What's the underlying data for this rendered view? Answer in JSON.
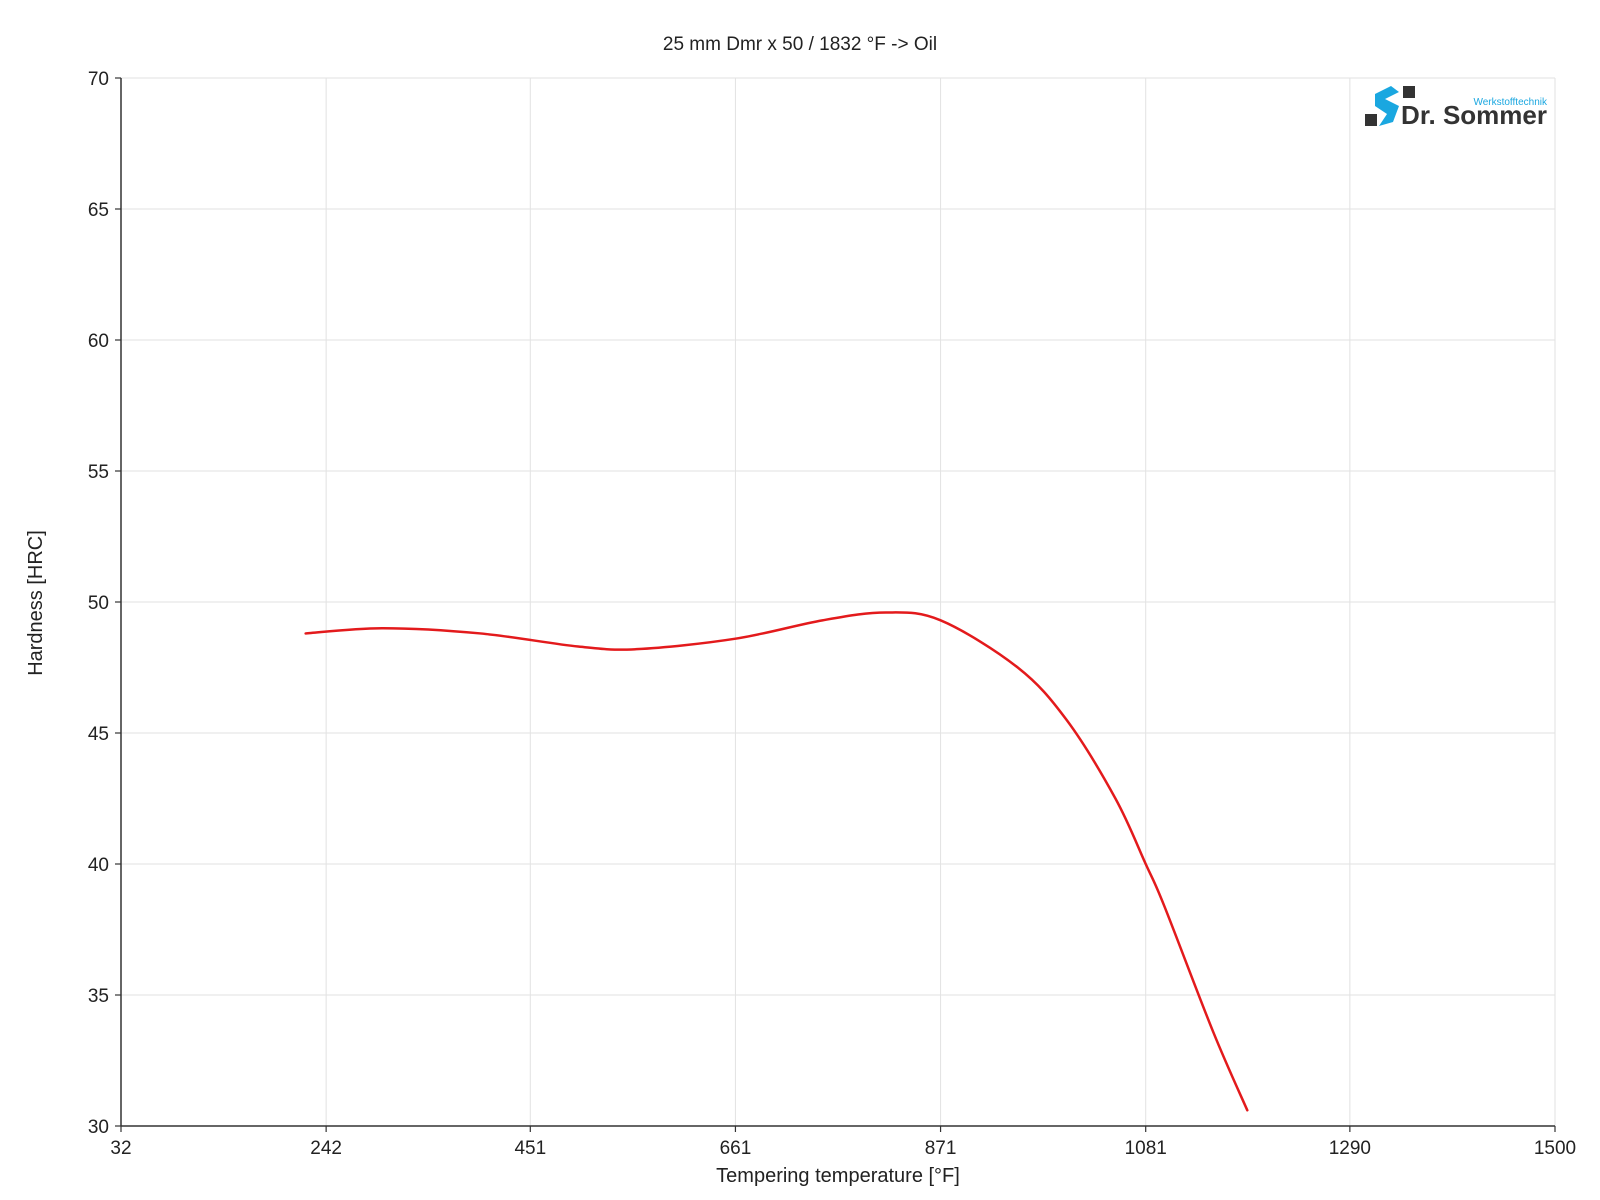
{
  "chart_data": {
    "type": "line",
    "title": "25 mm Dmr x 50 / 1832 °F -> Oil",
    "xlabel": "Tempering temperature [°F]",
    "ylabel": "Hardness [HRC]",
    "xlim": [
      32,
      1500
    ],
    "ylim": [
      30,
      70
    ],
    "x_ticks": [
      "32",
      "242",
      "451",
      "661",
      "871",
      "1081",
      "1290",
      "1500"
    ],
    "y_ticks": [
      "30",
      "35",
      "40",
      "45",
      "50",
      "55",
      "60",
      "65",
      "70"
    ],
    "grid": true,
    "series": [
      {
        "color": "#e31a1c",
        "x": [
          221,
          300,
          400,
          500,
          560,
          661,
          750,
          815,
          871,
          950,
          1000,
          1050,
          1081,
          1100,
          1150,
          1185
        ],
        "y": [
          48.8,
          49.0,
          48.8,
          48.3,
          48.2,
          48.6,
          49.3,
          49.6,
          49.3,
          47.5,
          45.5,
          42.5,
          40.0,
          38.4,
          33.6,
          30.6
        ]
      }
    ]
  },
  "logo": {
    "brand": "Dr. Sommer",
    "subtitle": "Werkstofftechnik",
    "colors": {
      "dark": "#333333",
      "blue": "#1aa7e0"
    }
  }
}
